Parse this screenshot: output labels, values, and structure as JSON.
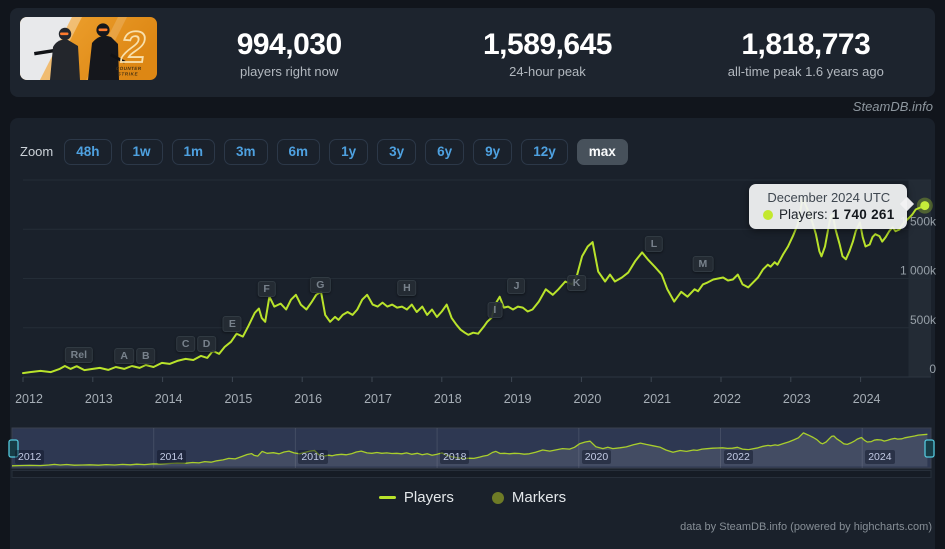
{
  "header": {
    "game": "Counter-Strike 2",
    "stats": [
      {
        "value": "994,030",
        "label": "players right now"
      },
      {
        "value": "1,589,645",
        "label": "24-hour peak"
      },
      {
        "value": "1,818,773",
        "label": "all-time peak 1.6 years ago"
      }
    ]
  },
  "watermark": "SteamDB.info",
  "zoom": {
    "label": "Zoom",
    "options": [
      "48h",
      "1w",
      "1m",
      "3m",
      "6m",
      "1y",
      "3y",
      "6y",
      "9y",
      "12y",
      "max"
    ],
    "selected": "max"
  },
  "tooltip": {
    "date": "December 2024 UTC",
    "series_label": "Players:",
    "value": "1 740 261"
  },
  "legend": {
    "players": "Players",
    "markers": "Markers"
  },
  "credits": "data by SteamDB.info (powered by highcharts.com)",
  "colors": {
    "line": "#b9e32b",
    "marker_dot": "#c6ec3a",
    "markers_legend": "#6e7b26",
    "zoom_link_blue": "#4ea1e0",
    "panel": "#1a212b",
    "page_bg": "#11151c",
    "grid": "#242d37",
    "axis_text": "#a6aeb6",
    "navigator_mask": "rgba(93,110,173,0.30)",
    "handle_teal": "#53c8dd"
  },
  "chart_data": {
    "type": "line",
    "title": "",
    "ylabel": "",
    "xlabel": "",
    "x_axis_labels": [
      "2012",
      "2013",
      "2014",
      "2015",
      "2016",
      "2017",
      "2018",
      "2019",
      "2020",
      "2021",
      "2022",
      "2023",
      "2024"
    ],
    "y_axis_ticks": [
      {
        "v": 0,
        "t": "0"
      },
      {
        "v": 500,
        "t": "500k"
      },
      {
        "v": 1000,
        "t": "1 000k"
      },
      {
        "v": 1500,
        "t": "1 500k"
      },
      {
        "v": 2000,
        "t": ""
      }
    ],
    "ylim_thousands": [
      0,
      2000
    ],
    "xlim_years": [
      2012,
      2025
    ],
    "grid": true,
    "legend_position": "bottom",
    "series": [
      {
        "name": "Players",
        "units": "thousands of players, monthly",
        "points": [
          [
            2012.0,
            40
          ],
          [
            2012.1,
            50
          ],
          [
            2012.25,
            62
          ],
          [
            2012.4,
            50
          ],
          [
            2012.52,
            80
          ],
          [
            2012.6,
            112
          ],
          [
            2012.68,
            82
          ],
          [
            2012.77,
            110
          ],
          [
            2012.88,
            70
          ],
          [
            2013.0,
            82
          ],
          [
            2013.1,
            92
          ],
          [
            2013.22,
            72
          ],
          [
            2013.33,
            102
          ],
          [
            2013.45,
            82
          ],
          [
            2013.56,
            112
          ],
          [
            2013.67,
            92
          ],
          [
            2013.76,
            122
          ],
          [
            2013.87,
            102
          ],
          [
            2013.99,
            143
          ],
          [
            2014.1,
            133
          ],
          [
            2014.21,
            163
          ],
          [
            2014.33,
            184
          ],
          [
            2014.44,
            173
          ],
          [
            2014.55,
            214
          ],
          [
            2014.64,
            194
          ],
          [
            2014.72,
            265
          ],
          [
            2014.81,
            235
          ],
          [
            2014.89,
            306
          ],
          [
            2014.98,
            357
          ],
          [
            2015.06,
            440
          ],
          [
            2015.15,
            410
          ],
          [
            2015.23,
            520
          ],
          [
            2015.32,
            650
          ],
          [
            2015.38,
            695
          ],
          [
            2015.42,
            600
          ],
          [
            2015.47,
            560
          ],
          [
            2015.53,
            815
          ],
          [
            2015.6,
            715
          ],
          [
            2015.69,
            745
          ],
          [
            2015.77,
            685
          ],
          [
            2015.84,
            785
          ],
          [
            2015.91,
            835
          ],
          [
            2015.98,
            735
          ],
          [
            2016.06,
            685
          ],
          [
            2016.13,
            755
          ],
          [
            2016.2,
            835
          ],
          [
            2016.27,
            865
          ],
          [
            2016.33,
            630
          ],
          [
            2016.4,
            560
          ],
          [
            2016.47,
            610
          ],
          [
            2016.52,
            580
          ],
          [
            2016.58,
            630
          ],
          [
            2016.65,
            660
          ],
          [
            2016.72,
            630
          ],
          [
            2016.79,
            685
          ],
          [
            2016.86,
            785
          ],
          [
            2016.93,
            835
          ],
          [
            2017.01,
            735
          ],
          [
            2017.08,
            715
          ],
          [
            2017.15,
            755
          ],
          [
            2017.22,
            715
          ],
          [
            2017.29,
            735
          ],
          [
            2017.36,
            705
          ],
          [
            2017.43,
            715
          ],
          [
            2017.5,
            685
          ],
          [
            2017.57,
            735
          ],
          [
            2017.64,
            660
          ],
          [
            2017.72,
            715
          ],
          [
            2017.79,
            630
          ],
          [
            2017.86,
            685
          ],
          [
            2017.93,
            610
          ],
          [
            2018.0,
            665
          ],
          [
            2018.07,
            735
          ],
          [
            2018.14,
            600
          ],
          [
            2018.21,
            530
          ],
          [
            2018.27,
            480
          ],
          [
            2018.33,
            450
          ],
          [
            2018.38,
            428
          ],
          [
            2018.45,
            450
          ],
          [
            2018.52,
            440
          ],
          [
            2018.6,
            510
          ],
          [
            2018.65,
            560
          ],
          [
            2018.71,
            600
          ],
          [
            2018.78,
            755
          ],
          [
            2018.83,
            815
          ],
          [
            2018.89,
            705
          ],
          [
            2018.95,
            715
          ],
          [
            2019.02,
            685
          ],
          [
            2019.09,
            715
          ],
          [
            2019.16,
            705
          ],
          [
            2019.23,
            665
          ],
          [
            2019.3,
            685
          ],
          [
            2019.39,
            765
          ],
          [
            2019.49,
            890
          ],
          [
            2019.59,
            835
          ],
          [
            2019.67,
            890
          ],
          [
            2019.77,
            970
          ],
          [
            2019.87,
            940
          ],
          [
            2019.94,
            1040
          ],
          [
            2020.01,
            1225
          ],
          [
            2020.09,
            1325
          ],
          [
            2020.16,
            1370
          ],
          [
            2020.24,
            1070
          ],
          [
            2020.34,
            970
          ],
          [
            2020.41,
            1040
          ],
          [
            2020.48,
            970
          ],
          [
            2020.58,
            1010
          ],
          [
            2020.67,
            1060
          ],
          [
            2020.77,
            1175
          ],
          [
            2020.87,
            1265
          ],
          [
            2020.95,
            1195
          ],
          [
            2021.05,
            1120
          ],
          [
            2021.15,
            1040
          ],
          [
            2021.23,
            890
          ],
          [
            2021.33,
            765
          ],
          [
            2021.43,
            865
          ],
          [
            2021.52,
            815
          ],
          [
            2021.62,
            890
          ],
          [
            2021.67,
            870
          ],
          [
            2021.74,
            940
          ],
          [
            2021.81,
            960
          ],
          [
            2021.89,
            990
          ],
          [
            2021.96,
            1000
          ],
          [
            2022.03,
            1010
          ],
          [
            2022.1,
            980
          ],
          [
            2022.17,
            990
          ],
          [
            2022.24,
            1040
          ],
          [
            2022.31,
            940
          ],
          [
            2022.39,
            910
          ],
          [
            2022.46,
            960
          ],
          [
            2022.53,
            1010
          ],
          [
            2022.6,
            1090
          ],
          [
            2022.67,
            1140
          ],
          [
            2022.71,
            1120
          ],
          [
            2022.77,
            1165
          ],
          [
            2022.81,
            1140
          ],
          [
            2022.89,
            1245
          ],
          [
            2022.96,
            1325
          ],
          [
            2023.03,
            1430
          ],
          [
            2023.1,
            1550
          ],
          [
            2023.17,
            1815
          ],
          [
            2023.24,
            1700
          ],
          [
            2023.31,
            1570
          ],
          [
            2023.36,
            1450
          ],
          [
            2023.41,
            1275
          ],
          [
            2023.44,
            1225
          ],
          [
            2023.49,
            1325
          ],
          [
            2023.53,
            1480
          ],
          [
            2023.57,
            1630
          ],
          [
            2023.6,
            1650
          ],
          [
            2023.64,
            1500
          ],
          [
            2023.7,
            1345
          ],
          [
            2023.74,
            1225
          ],
          [
            2023.79,
            1195
          ],
          [
            2023.84,
            1275
          ],
          [
            2023.89,
            1375
          ],
          [
            2023.93,
            1480
          ],
          [
            2023.99,
            1570
          ],
          [
            2024.03,
            1420
          ],
          [
            2024.07,
            1325
          ],
          [
            2024.13,
            1345
          ],
          [
            2024.17,
            1420
          ],
          [
            2024.21,
            1450
          ],
          [
            2024.27,
            1430
          ],
          [
            2024.31,
            1375
          ],
          [
            2024.36,
            1420
          ],
          [
            2024.41,
            1480
          ],
          [
            2024.46,
            1520
          ],
          [
            2024.5,
            1480
          ],
          [
            2024.56,
            1500
          ],
          [
            2024.6,
            1550
          ],
          [
            2024.64,
            1580
          ],
          [
            2024.7,
            1620
          ],
          [
            2024.74,
            1650
          ],
          [
            2024.79,
            1700
          ],
          [
            2024.92,
            1740.261
          ]
        ]
      }
    ],
    "last_point": {
      "x": 2024.92,
      "label": "December 2024 UTC",
      "players": 1740261
    },
    "flags": [
      {
        "label": "Rel",
        "x": 2012.8,
        "y": 225
      },
      {
        "label": "A",
        "x": 2013.45,
        "y": 215
      },
      {
        "label": "B",
        "x": 2013.76,
        "y": 215
      },
      {
        "label": "C",
        "x": 2014.33,
        "y": 335
      },
      {
        "label": "D",
        "x": 2014.63,
        "y": 335
      },
      {
        "label": "E",
        "x": 2015.0,
        "y": 540
      },
      {
        "label": "F",
        "x": 2015.49,
        "y": 895
      },
      {
        "label": "G",
        "x": 2016.26,
        "y": 935
      },
      {
        "label": "H",
        "x": 2017.5,
        "y": 905
      },
      {
        "label": "I",
        "x": 2018.76,
        "y": 680
      },
      {
        "label": "J",
        "x": 2019.07,
        "y": 925
      },
      {
        "label": "K",
        "x": 2019.93,
        "y": 955
      },
      {
        "label": "L",
        "x": 2021.04,
        "y": 1355
      },
      {
        "label": "M",
        "x": 2021.74,
        "y": 1150
      }
    ],
    "navigator": {
      "year_labels": [
        "2012",
        "2014",
        "2016",
        "2018",
        "2020",
        "2022",
        "2024"
      ]
    }
  }
}
